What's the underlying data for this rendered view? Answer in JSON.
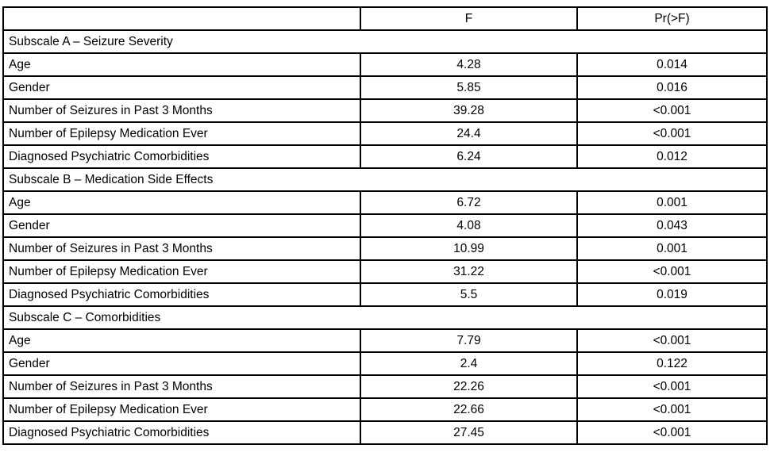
{
  "table": {
    "columns": [
      "",
      "F",
      "Pr(>F)"
    ],
    "sections": [
      {
        "title": "Subscale A – Seizure Severity",
        "rows": [
          {
            "label": "Age",
            "f": "4.28",
            "p": "0.014"
          },
          {
            "label": "Gender",
            "f": "5.85",
            "p": "0.016"
          },
          {
            "label": "Number of Seizures in Past 3 Months",
            "f": "39.28",
            "p": "<0.001"
          },
          {
            "label": "Number of Epilepsy Medication Ever",
            "f": "24.4",
            "p": "<0.001"
          },
          {
            "label": "Diagnosed Psychiatric Comorbidities",
            "f": "6.24",
            "p": "0.012"
          }
        ]
      },
      {
        "title": "Subscale B – Medication Side Effects",
        "rows": [
          {
            "label": "Age",
            "f": "6.72",
            "p": "0.001"
          },
          {
            "label": "Gender",
            "f": "4.08",
            "p": "0.043"
          },
          {
            "label": "Number of Seizures in Past 3 Months",
            "f": "10.99",
            "p": "0.001"
          },
          {
            "label": "Number of Epilepsy Medication Ever",
            "f": "31.22",
            "p": "<0.001"
          },
          {
            "label": "Diagnosed Psychiatric Comorbidities",
            "f": "5.5",
            "p": "0.019"
          }
        ]
      },
      {
        "title": "Subscale C – Comorbidities",
        "rows": [
          {
            "label": "Age",
            "f": "7.79",
            "p": "<0.001"
          },
          {
            "label": "Gender",
            "f": "2.4",
            "p": "0.122"
          },
          {
            "label": "Number of Seizures in Past 3 Months",
            "f": "22.26",
            "p": "<0.001"
          },
          {
            "label": "Number of Epilepsy Medication Ever",
            "f": "22.66",
            "p": "<0.001"
          },
          {
            "label": "Diagnosed Psychiatric Comorbidities",
            "f": "27.45",
            "p": "<0.001"
          }
        ]
      }
    ],
    "colors": {
      "border": "#000000",
      "text": "#000000",
      "background": "#ffffff"
    }
  }
}
